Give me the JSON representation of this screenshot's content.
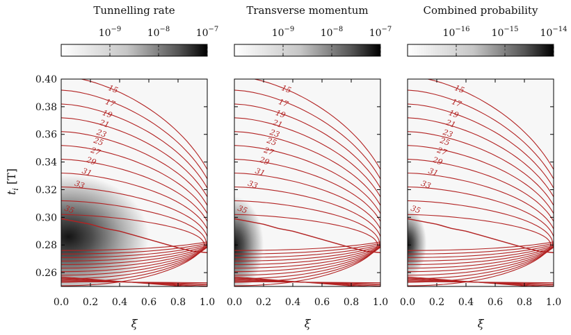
{
  "chart_data": [
    {
      "type": "heatmap",
      "title": "Tunnelling rate",
      "xlabel": "ξ",
      "ylabel": "t_i [T]",
      "colorbar": {
        "scale": "log",
        "range": [
          1e-10,
          1e-07
        ],
        "ticks": [
          1e-09,
          1e-08,
          1e-07
        ],
        "tick_labels": [
          {
            "base": "10",
            "exp": "−9"
          },
          {
            "base": "10",
            "exp": "−8"
          },
          {
            "base": "10",
            "exp": "−7"
          }
        ]
      },
      "peak": {
        "xi": 0.05,
        "t_i": 0.286
      },
      "spread": {
        "xi": 0.55,
        "t_i": 0.045
      }
    },
    {
      "type": "heatmap",
      "title": "Transverse momentum",
      "xlabel": "ξ",
      "ylabel": "",
      "colorbar": {
        "scale": "log",
        "range": [
          1e-10,
          1e-07
        ],
        "ticks": [
          1e-09,
          1e-08,
          1e-07
        ],
        "tick_labels": [
          {
            "base": "10",
            "exp": "−9"
          },
          {
            "base": "10",
            "exp": "−8"
          },
          {
            "base": "10",
            "exp": "−7"
          }
        ]
      },
      "peak": {
        "xi": 0.0,
        "t_i": 0.28
      },
      "spread": {
        "xi": 0.2,
        "t_i": 0.035
      }
    },
    {
      "type": "heatmap",
      "title": "Combined probability",
      "xlabel": "ξ",
      "ylabel": "",
      "colorbar": {
        "scale": "log",
        "range": [
          1e-17,
          1e-14
        ],
        "ticks": [
          1e-16,
          1e-15,
          1e-14
        ],
        "tick_labels": [
          {
            "base": "10",
            "exp": "−16"
          },
          {
            "base": "10",
            "exp": "−15"
          },
          {
            "base": "10",
            "exp": "−14"
          }
        ]
      },
      "peak": {
        "xi": 0.0,
        "t_i": 0.281
      },
      "spread": {
        "xi": 0.13,
        "t_i": 0.025
      }
    }
  ],
  "axes": {
    "xlim": [
      0.0,
      1.0
    ],
    "ylim": [
      0.25,
      0.4
    ],
    "x_ticks": [
      "0.0",
      "0.2",
      "0.4",
      "0.6",
      "0.8",
      "1.0"
    ],
    "y_ticks": [
      "0.26",
      "0.28",
      "0.30",
      "0.32",
      "0.34",
      "0.36",
      "0.38",
      "0.40"
    ],
    "xlabel": "ξ",
    "ylabel_base": "t",
    "ylabel_sub": "i",
    "ylabel_unit": "[T]"
  },
  "contours": {
    "color": "#b22222",
    "levels": [
      15,
      17,
      19,
      21,
      23,
      25,
      27,
      29,
      31,
      33,
      35
    ],
    "labels": [
      "15",
      "17",
      "19",
      "21",
      "23",
      "25",
      "27",
      "29",
      "31",
      "33",
      "35"
    ],
    "label_points": [
      {
        "level": 15,
        "xi": 0.35,
        "t_i": 0.391
      },
      {
        "level": 17,
        "xi": 0.33,
        "t_i": 0.381
      },
      {
        "level": 19,
        "xi": 0.31,
        "t_i": 0.373
      },
      {
        "level": 21,
        "xi": 0.29,
        "t_i": 0.366
      },
      {
        "level": 23,
        "xi": 0.27,
        "t_i": 0.359
      },
      {
        "level": 25,
        "xi": 0.25,
        "t_i": 0.353
      },
      {
        "level": 27,
        "xi": 0.23,
        "t_i": 0.346
      },
      {
        "level": 29,
        "xi": 0.2,
        "t_i": 0.339
      },
      {
        "level": 31,
        "xi": 0.17,
        "t_i": 0.331
      },
      {
        "level": 33,
        "xi": 0.12,
        "t_i": 0.322
      },
      {
        "level": 35,
        "xi": 0.05,
        "t_i": 0.304
      }
    ],
    "separatrix": [
      [
        0.0,
        0.299
      ],
      [
        0.1,
        0.297
      ],
      [
        0.2,
        0.295
      ],
      [
        0.3,
        0.292
      ],
      [
        0.4,
        0.29
      ],
      [
        0.5,
        0.287
      ],
      [
        0.6,
        0.284
      ],
      [
        0.7,
        0.281
      ],
      [
        0.8,
        0.278
      ],
      [
        0.9,
        0.2755
      ],
      [
        1.0,
        0.2745
      ]
    ]
  }
}
